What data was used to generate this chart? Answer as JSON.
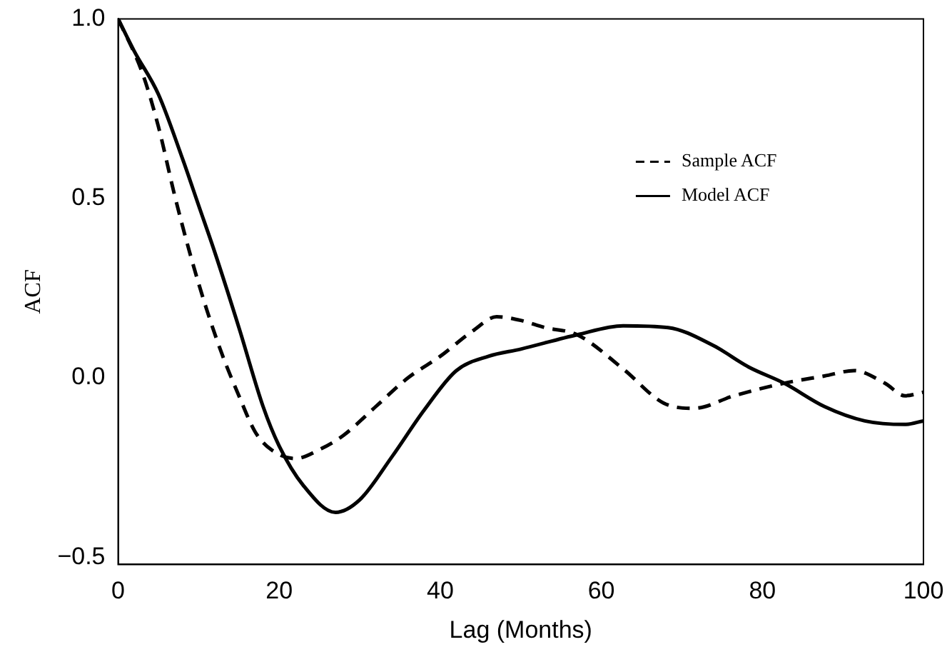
{
  "chart_data": {
    "type": "line",
    "xlabel": "Lag (Months)",
    "ylabel": "ACF",
    "xlim": [
      0,
      100
    ],
    "xticks": [
      0,
      20,
      40,
      60,
      80,
      100
    ],
    "ylim": [
      -0.52,
      1.0
    ],
    "yticks": [
      {
        "value": -0.5,
        "label": "−0.5"
      },
      {
        "value": 0,
        "label": "0.0"
      },
      {
        "value": 0.5,
        "label": "0.5"
      },
      {
        "value": 1,
        "label": "1.0"
      }
    ],
    "grid": false,
    "legend": "top right",
    "marker": "none",
    "series": [
      {
        "name": "Sample ACF",
        "color": "#000000",
        "line_style": "dashed",
        "x": [
          0,
          3,
          5,
          7,
          9,
          11,
          13,
          15,
          17,
          19,
          22,
          25,
          28,
          32,
          36,
          40,
          44,
          47,
          50,
          53,
          57,
          62.7,
          67.7,
          71.5,
          76.5,
          82.7,
          87.7,
          91.4,
          95.2,
          97.7,
          100
        ],
        "values": [
          1.0,
          0.85,
          0.7,
          0.51,
          0.34,
          0.19,
          0.06,
          -0.05,
          -0.15,
          -0.2,
          -0.225,
          -0.2,
          -0.16,
          -0.08,
          0.0,
          0.06,
          0.13,
          0.17,
          0.16,
          0.14,
          0.12,
          0.025,
          -0.07,
          -0.085,
          -0.05,
          -0.015,
          0.005,
          0.02,
          -0.015,
          -0.05,
          -0.04
        ]
      },
      {
        "name": "Model ACF",
        "color": "#000000",
        "line_style": "solid",
        "x": [
          0,
          2,
          5,
          8,
          10,
          12,
          15,
          18,
          20,
          23,
          27,
          30,
          34,
          38,
          42,
          46,
          50,
          57,
          62.7,
          68.3,
          73.9,
          78.3,
          82.7,
          87.7,
          92.7,
          97.7,
          100
        ],
        "values": [
          1.0,
          0.91,
          0.79,
          0.61,
          0.48,
          0.35,
          0.14,
          -0.08,
          -0.19,
          -0.3,
          -0.375,
          -0.34,
          -0.22,
          -0.09,
          0.02,
          0.06,
          0.08,
          0.12,
          0.145,
          0.14,
          0.09,
          0.03,
          -0.015,
          -0.08,
          -0.12,
          -0.13,
          -0.12
        ]
      }
    ]
  }
}
